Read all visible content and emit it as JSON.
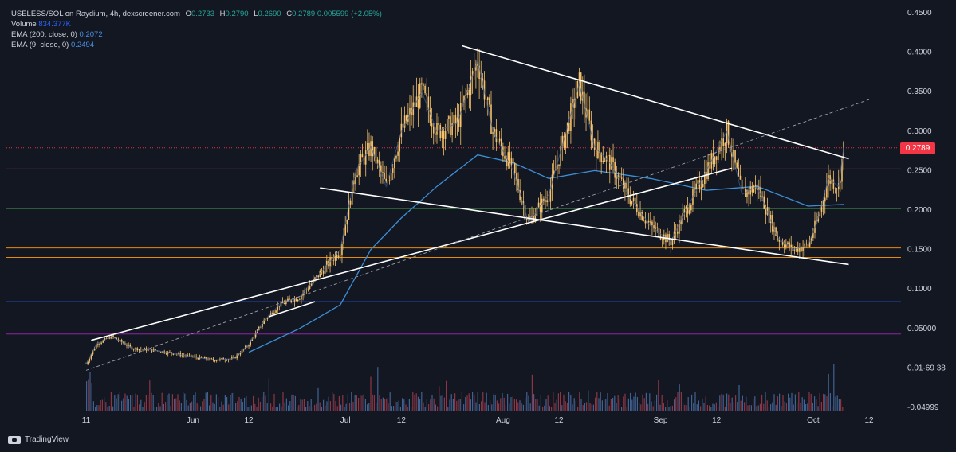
{
  "header": {
    "symbol_line": "USELESS/SOL on Raydium, 4h, dexscreener.com",
    "o_label": "O",
    "o_value": "0.2733",
    "h_label": "H",
    "h_value": "0.2790",
    "l_label": "L",
    "l_value": "0.2690",
    "c_label": "C",
    "c_value": "0.2789",
    "change": "0.005599 (+2.05%)",
    "volume_label": "Volume",
    "volume_value": "834.377K",
    "ema200_label": "EMA (200, close, 0)",
    "ema200_value": "0.2072",
    "ema9_label": "EMA (9, close, 0)",
    "ema9_value": "0.2494"
  },
  "branding": {
    "name": "TradingView"
  },
  "colors": {
    "background": "#131722",
    "candles": "#f5c26b",
    "ema": "#3d8fd6",
    "last_price_tag": "#f23645",
    "volume_up": "#4a6fa5",
    "volume_down": "#a23b4b"
  },
  "chart_data": {
    "type": "line",
    "title": "USELESS/SOL on Raydium, 4h, dexscreener.com",
    "y_axis": {
      "ticks": [
        "0.4500",
        "0.4000",
        "0.3500",
        "0.3000",
        "0.2500",
        "0.2000",
        "0.1500",
        "0.1000",
        "0.05000",
        "0.01·69 38",
        "-0.04999"
      ],
      "tick_values": [
        0.45,
        0.4,
        0.35,
        0.3,
        0.25,
        0.2,
        0.15,
        0.1,
        0.05,
        0.0,
        -0.05
      ],
      "ylim": [
        -0.05,
        0.45
      ]
    },
    "x_axis": {
      "ticks": [
        "11",
        "Jun",
        "12",
        "Jul",
        "12",
        "Aug",
        "12",
        "Sep",
        "12",
        "Oct",
        "12"
      ],
      "tick_dates": [
        "2025-05-11",
        "2025-06-01",
        "2025-06-12",
        "2025-07-01",
        "2025-07-12",
        "2025-08-01",
        "2025-08-12",
        "2025-09-01",
        "2025-09-12",
        "2025-10-01",
        "2025-10-12"
      ]
    },
    "last_price": "0.2789",
    "series": [
      {
        "name": "USELESS/SOL",
        "points": [
          [
            "2025-05-11",
            0.005
          ],
          [
            "2025-05-13",
            0.03
          ],
          [
            "2025-05-16",
            0.04
          ],
          [
            "2025-05-20",
            0.025
          ],
          [
            "2025-05-25",
            0.022
          ],
          [
            "2025-06-01",
            0.014
          ],
          [
            "2025-06-05",
            0.01
          ],
          [
            "2025-06-09",
            0.012
          ],
          [
            "2025-06-12",
            0.03
          ],
          [
            "2025-06-15",
            0.06
          ],
          [
            "2025-06-18",
            0.08
          ],
          [
            "2025-06-22",
            0.09
          ],
          [
            "2025-06-26",
            0.12
          ],
          [
            "2025-06-30",
            0.15
          ],
          [
            "2025-07-03",
            0.25
          ],
          [
            "2025-07-06",
            0.28
          ],
          [
            "2025-07-09",
            0.23
          ],
          [
            "2025-07-12",
            0.3
          ],
          [
            "2025-07-16",
            0.35
          ],
          [
            "2025-07-19",
            0.3
          ],
          [
            "2025-07-23",
            0.31
          ],
          [
            "2025-07-27",
            0.39
          ],
          [
            "2025-07-30",
            0.3
          ],
          [
            "2025-08-03",
            0.25
          ],
          [
            "2025-08-06",
            0.185
          ],
          [
            "2025-08-10",
            0.22
          ],
          [
            "2025-08-13",
            0.29
          ],
          [
            "2025-08-16",
            0.36
          ],
          [
            "2025-08-19",
            0.28
          ],
          [
            "2025-08-22",
            0.26
          ],
          [
            "2025-08-26",
            0.215
          ],
          [
            "2025-08-30",
            0.18
          ],
          [
            "2025-09-03",
            0.16
          ],
          [
            "2025-09-06",
            0.2
          ],
          [
            "2025-09-10",
            0.25
          ],
          [
            "2025-09-14",
            0.3
          ],
          [
            "2025-09-17",
            0.22
          ],
          [
            "2025-09-20",
            0.23
          ],
          [
            "2025-09-24",
            0.165
          ],
          [
            "2025-09-27",
            0.15
          ],
          [
            "2025-09-30",
            0.155
          ],
          [
            "2025-10-02",
            0.19
          ],
          [
            "2025-10-04",
            0.24
          ],
          [
            "2025-10-06",
            0.23
          ],
          [
            "2025-10-07",
            0.2789
          ]
        ]
      },
      {
        "name": "EMA (200, close, 0)",
        "points": [
          [
            "2025-06-12",
            0.02
          ],
          [
            "2025-06-22",
            0.05
          ],
          [
            "2025-06-30",
            0.08
          ],
          [
            "2025-07-06",
            0.15
          ],
          [
            "2025-07-12",
            0.19
          ],
          [
            "2025-07-19",
            0.23
          ],
          [
            "2025-07-27",
            0.27
          ],
          [
            "2025-08-03",
            0.26
          ],
          [
            "2025-08-10",
            0.24
          ],
          [
            "2025-08-19",
            0.25
          ],
          [
            "2025-08-30",
            0.24
          ],
          [
            "2025-09-10",
            0.225
          ],
          [
            "2025-09-20",
            0.23
          ],
          [
            "2025-09-30",
            0.205
          ],
          [
            "2025-10-07",
            0.2072
          ]
        ]
      }
    ],
    "horizontal_levels": [
      {
        "value": 0.252,
        "color": "#c2408f"
      },
      {
        "value": 0.202,
        "color": "#4caf50"
      },
      {
        "value": 0.152,
        "color": "#ff9800"
      },
      {
        "value": 0.14,
        "color": "#ff9800"
      },
      {
        "value": 0.084,
        "color": "#2962ff"
      },
      {
        "value": 0.043,
        "color": "#9c27b0"
      },
      {
        "value": 0.2789,
        "color": "#f23645",
        "dotted": true
      }
    ],
    "trendlines": [
      {
        "from": [
          "2025-07-24",
          0.408
        ],
        "to": [
          "2025-10-08",
          0.265
        ],
        "color": "#ffffff"
      },
      {
        "from": [
          "2025-06-26",
          0.228
        ],
        "to": [
          "2025-10-08",
          0.131
        ],
        "color": "#ffffff"
      },
      {
        "from": [
          "2025-05-12",
          0.035
        ],
        "to": [
          "2025-09-15",
          0.253
        ],
        "color": "#ffffff"
      },
      {
        "from": [
          "2025-06-16",
          0.065
        ],
        "to": [
          "2025-06-25",
          0.084
        ],
        "color": "#ffffff"
      },
      {
        "from": [
          "2025-05-11",
          -0.003
        ],
        "to": [
          "2025-10-12",
          0.34
        ],
        "color": "#9aa0a6",
        "dashed": true
      }
    ],
    "grid": false,
    "legend": "top-left"
  }
}
